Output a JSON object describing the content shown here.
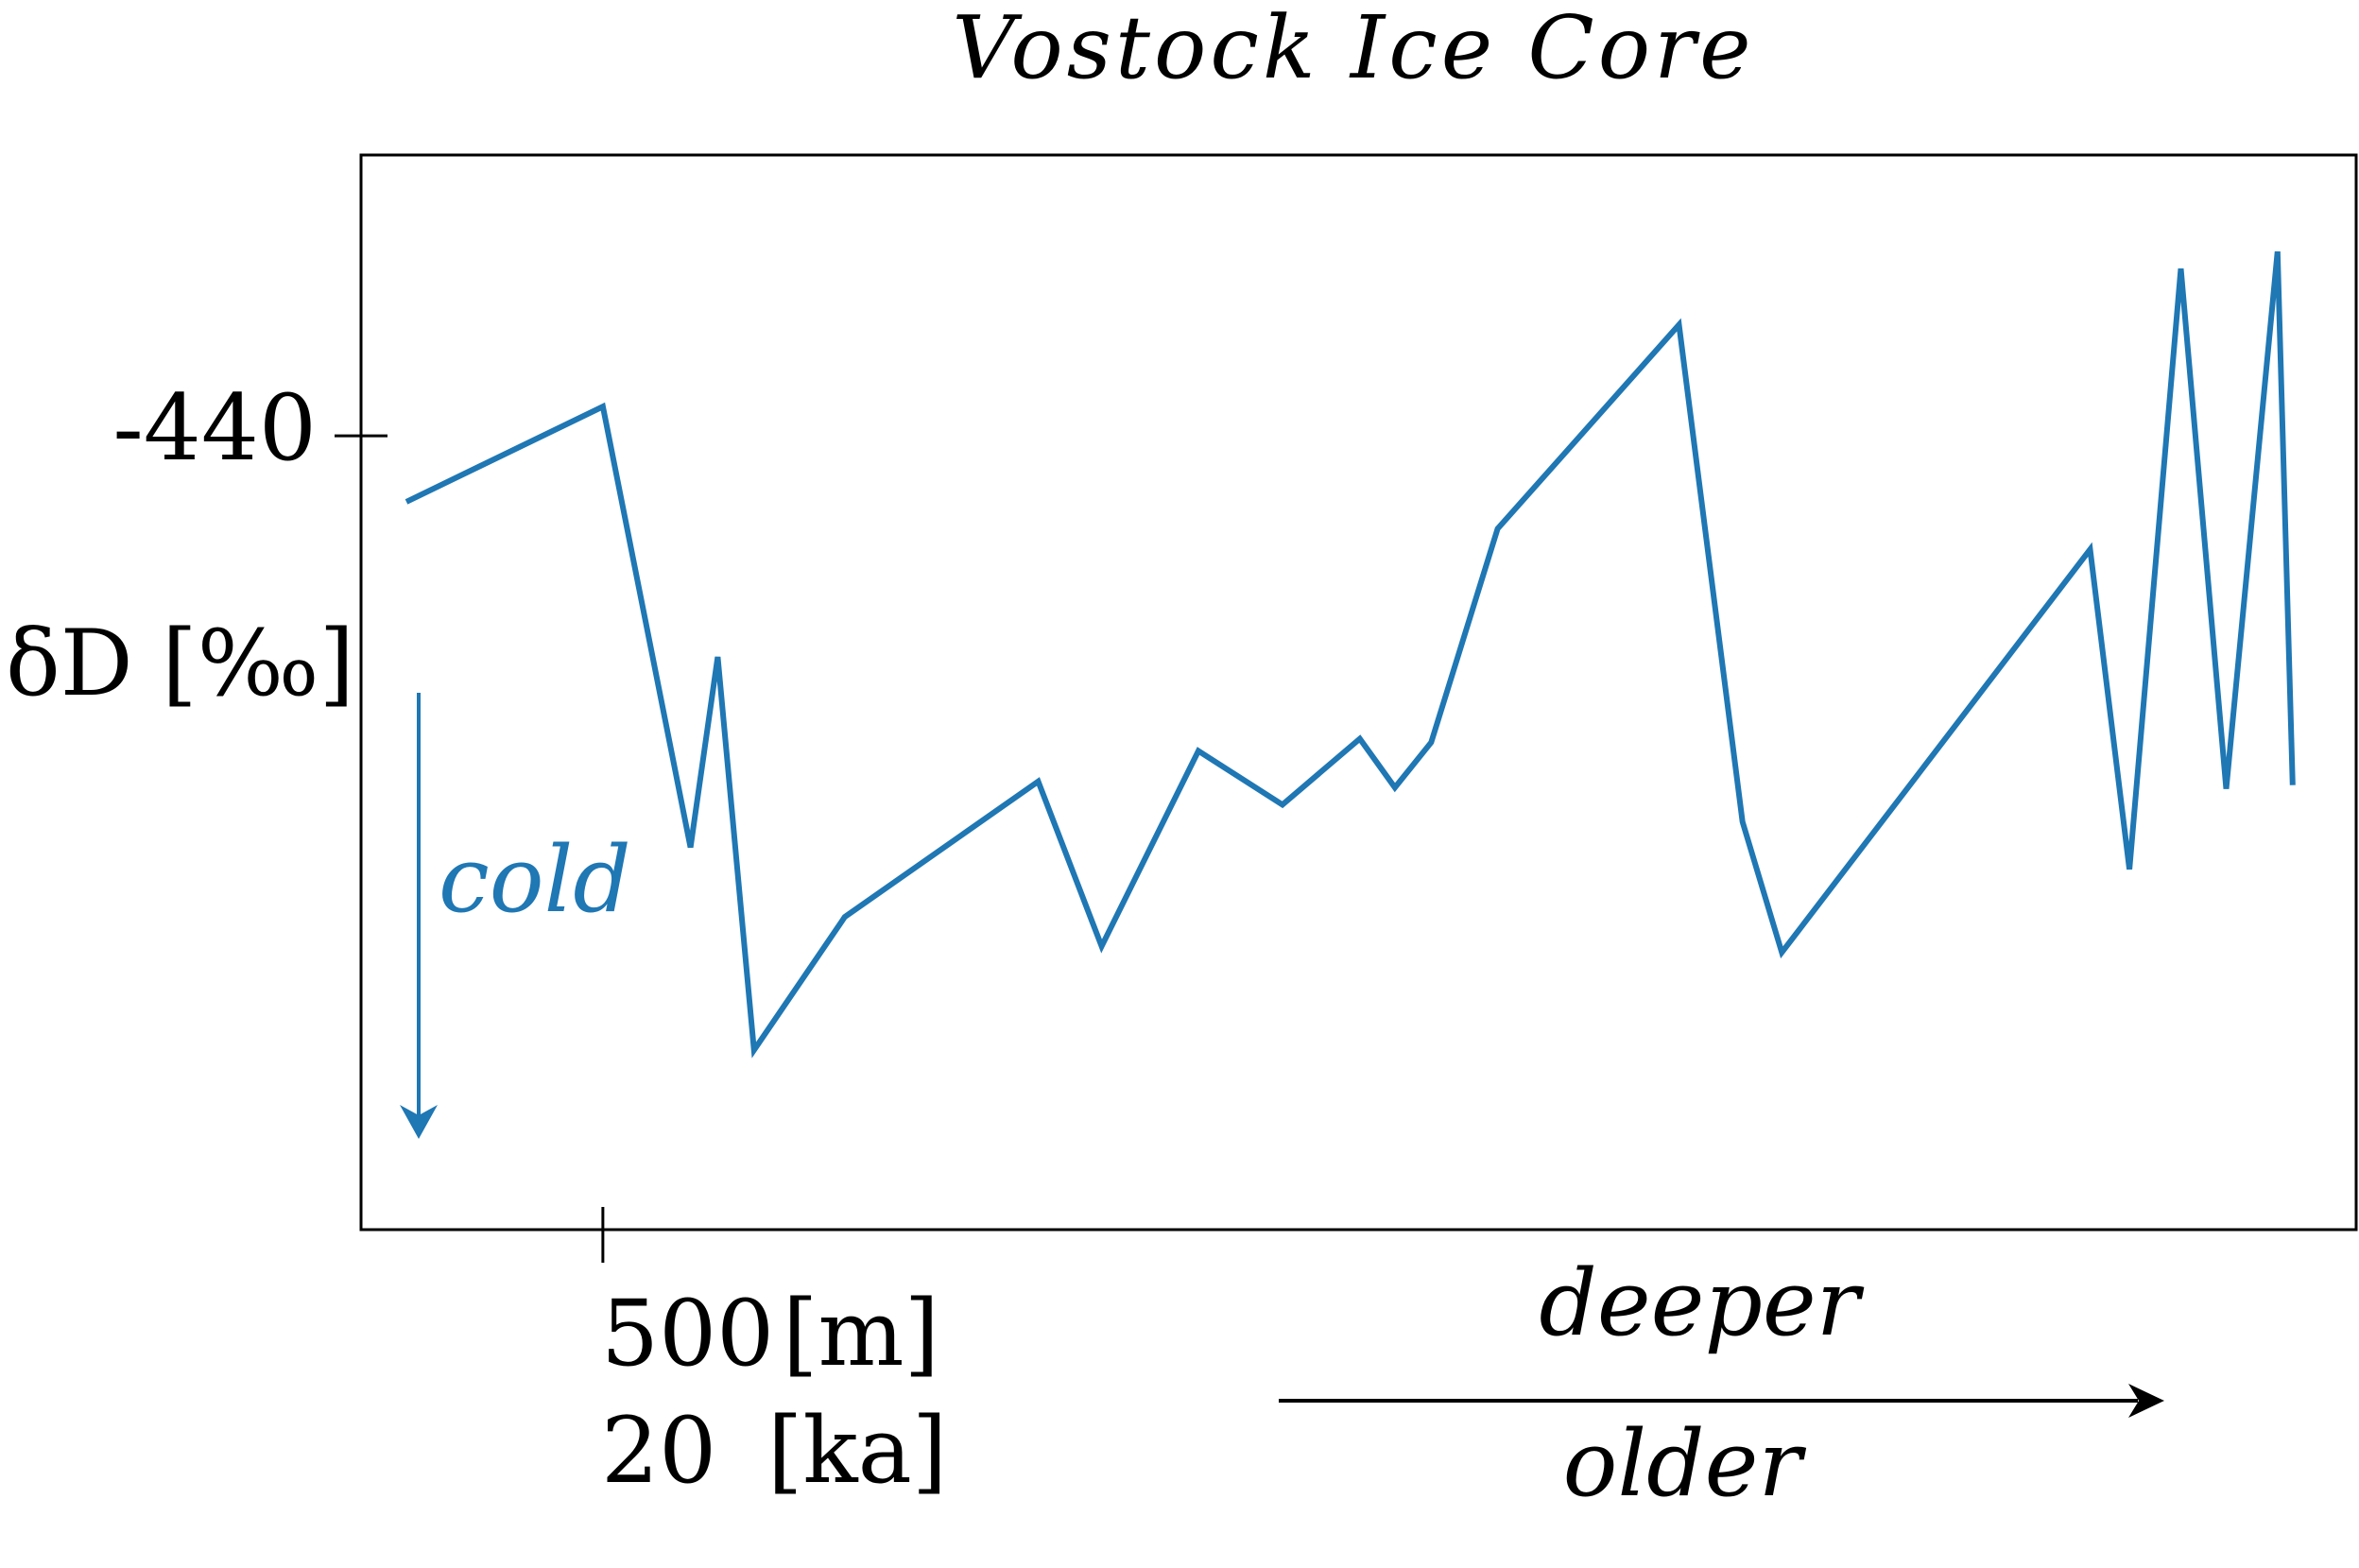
{
  "colors": {
    "series": "#1f77b4",
    "axis": "#000000",
    "background": "#ffffff"
  },
  "chart_data": {
    "type": "line",
    "title": "Vostock Ice Core",
    "ylabel": "δD [‰]",
    "xlabel": "",
    "grid": false,
    "x_tick": {
      "value": 500,
      "label": "500 [m]",
      "depth_value": "500",
      "depth_unit": "[m]",
      "age_value": "20",
      "age_unit": "[ka]"
    },
    "y_tick": {
      "value": -440,
      "label": "-440"
    },
    "xlim": [
      100,
      3400
    ],
    "ylim": [
      -505,
      -417
    ],
    "series": [
      {
        "x": [
          175,
          500,
          645,
          690,
          750,
          900,
          1220,
          1325,
          1485,
          1624,
          1752,
          1810,
          1870,
          1980,
          2280,
          2385,
          2450,
          2960,
          3025,
          3110,
          3185,
          3270,
          3295
        ],
        "y": [
          -445.4,
          -437.6,
          -473.7,
          -458.1,
          -490.3,
          -479.4,
          -468.3,
          -481.8,
          -465.8,
          -470.2,
          -464.8,
          -468.8,
          -465.1,
          -447.6,
          -430.9,
          -471.6,
          -482.3,
          -449.3,
          -475.5,
          -426.3,
          -468.9,
          -424.9,
          -468.6
        ]
      }
    ],
    "annotations": {
      "cold": "cold",
      "deeper": "deeper",
      "older": "older"
    }
  }
}
